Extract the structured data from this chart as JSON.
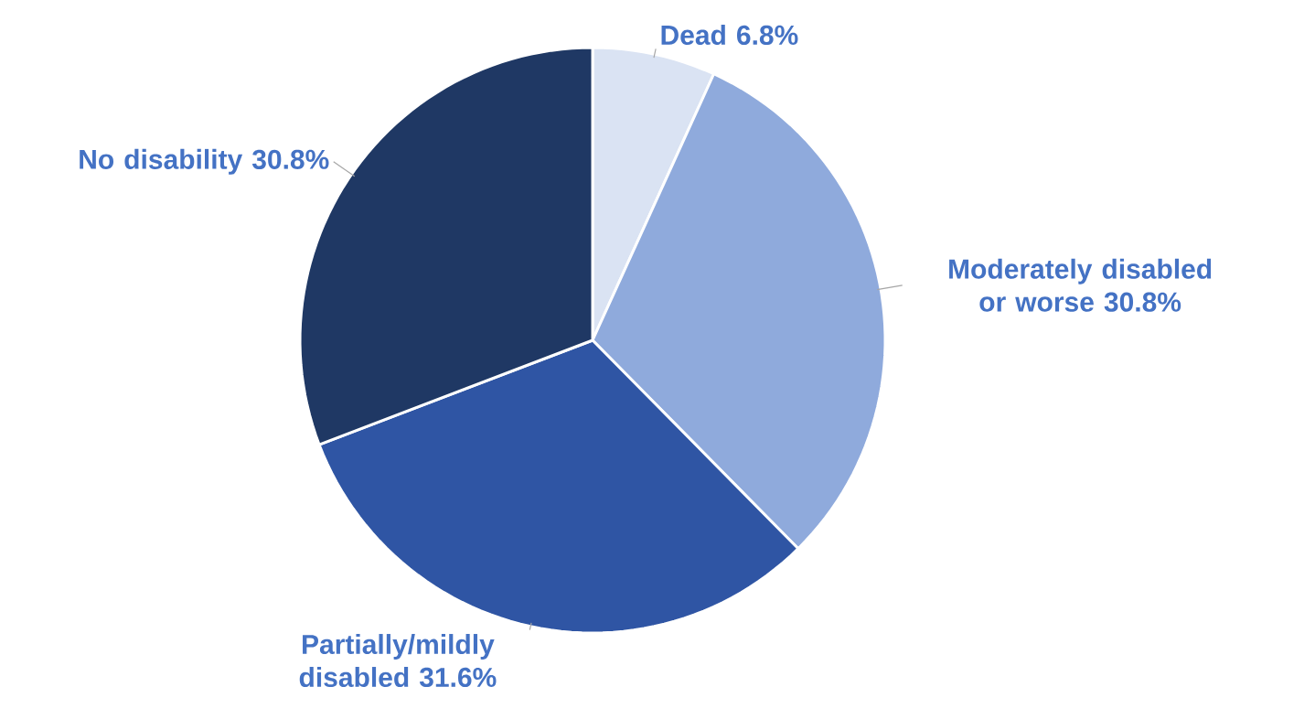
{
  "chart_data": {
    "type": "pie",
    "categories": [
      "Dead",
      "Moderately disabled or worse",
      "Partially/mildly disabled",
      "No disability"
    ],
    "values": [
      6.8,
      30.8,
      31.6,
      30.8
    ],
    "value_labels": [
      "6.8%",
      "30.8%",
      "31.6%",
      "30.8%"
    ],
    "colors": [
      "#dae3f3",
      "#8faadc",
      "#2f55a4",
      "#1f3864"
    ]
  }
}
